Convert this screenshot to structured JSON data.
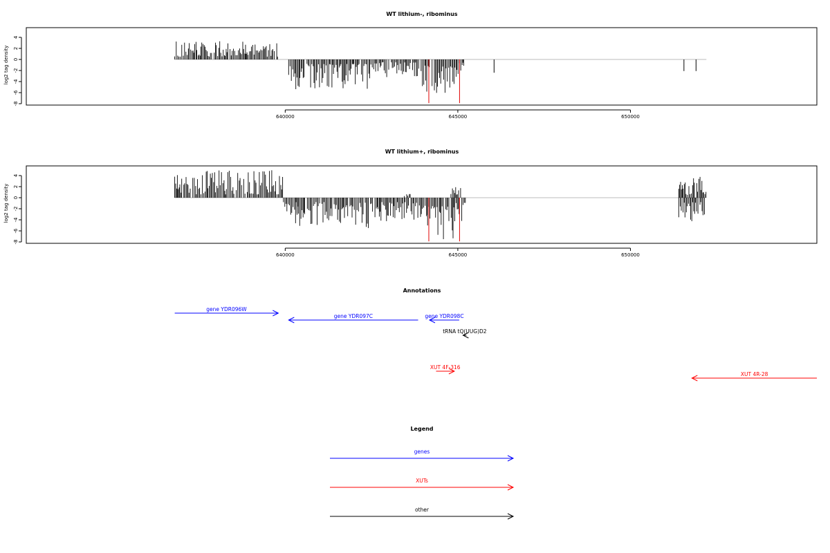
{
  "chart_data": [
    {
      "type": "bar",
      "title": "WT lithium-, ribominus",
      "xlabel": "",
      "ylabel": "log2 tag density",
      "xlim": [
        632500,
        655400
      ],
      "ylim": [
        -8,
        5.5
      ],
      "x_ticks": [
        640000,
        645000,
        650000
      ],
      "y_ticks": [
        4,
        2,
        0,
        -2,
        -4,
        -6,
        -8
      ],
      "x_tick_labels": [
        "640000",
        "645000",
        "650000"
      ],
      "y_tick_labels": [
        "4",
        "2",
        "0",
        "-2",
        "-4",
        "-6",
        "-8"
      ],
      "baseline": {
        "x_start": 636800,
        "x_end": 652200,
        "color": "#bbbbbb"
      },
      "series": [
        {
          "color": "#000000",
          "profile": {
            "positive_segments": [
              [
                636800,
                639800,
                0.5,
                3.3
              ]
            ],
            "negative_segments": [
              [
                640100,
                642600,
                -0.8,
                -5.6
              ],
              [
                642600,
                643800,
                -0.5,
                -3.2
              ],
              [
                643800,
                644100,
                -0.8,
                -5.0
              ],
              [
                644100,
                644950,
                -1.2,
                -6.1
              ],
              [
                644950,
                645200,
                -0.5,
                -3.6
              ]
            ],
            "isolated": [
              [
                646050,
                -2.4
              ],
              [
                651550,
                -2.1
              ],
              [
                651900,
                -2.1
              ]
            ]
          }
        }
      ],
      "highlights": [
        {
          "x": 644160,
          "y": -7.9,
          "color": "#e00000"
        },
        {
          "x": 645050,
          "y": -7.9,
          "color": "#e00000"
        }
      ]
    },
    {
      "type": "bar",
      "title": "WT lithium+, ribominus",
      "xlabel": "",
      "ylabel": "log2 tag density",
      "xlim": [
        632500,
        655400
      ],
      "ylim": [
        -8,
        5.5
      ],
      "x_ticks": [
        640000,
        645000,
        650000
      ],
      "y_ticks": [
        4,
        2,
        0,
        -2,
        -4,
        -6,
        -8
      ],
      "x_tick_labels": [
        "640000",
        "645000",
        "650000"
      ],
      "y_tick_labels": [
        "4",
        "2",
        "0",
        "-2",
        "-4",
        "-6",
        "-8"
      ],
      "baseline": {
        "x_start": 636800,
        "x_end": 652200,
        "color": "#bbbbbb"
      },
      "series": [
        {
          "color": "#000000",
          "profile": {
            "positive_segments": [
              [
                636800,
                639950,
                0.6,
                5.0
              ],
              [
                643450,
                643650,
                0.3,
                1.8
              ],
              [
                644800,
                645100,
                0.5,
                2.2
              ],
              [
                651400,
                652200,
                0.5,
                4.1
              ]
            ],
            "negative_segments": [
              [
                639950,
                640400,
                -0.8,
                -3.5
              ],
              [
                640300,
                640750,
                -2.0,
                -5.2
              ],
              [
                640750,
                642600,
                -0.8,
                -5.5
              ],
              [
                642600,
                643600,
                -0.8,
                -4.5
              ],
              [
                643600,
                644100,
                -0.8,
                -4.0
              ],
              [
                644100,
                644950,
                -1.5,
                -7.6
              ],
              [
                644950,
                645250,
                -0.8,
                -5.2
              ],
              [
                651400,
                652200,
                -0.8,
                -4.6
              ]
            ],
            "isolated": []
          }
        }
      ],
      "highlights": [
        {
          "x": 644160,
          "y": -7.9,
          "color": "#e00000"
        },
        {
          "x": 645050,
          "y": -7.9,
          "color": "#e00000"
        }
      ]
    }
  ],
  "annotations": {
    "title": "Annotations",
    "items": [
      {
        "label": "gene YDR096W",
        "x_start": 636800,
        "x_end": 639800,
        "direction": "right",
        "color": "#0000ff",
        "row": 0
      },
      {
        "label": "gene YDR097C",
        "x_start": 640100,
        "x_end": 643850,
        "direction": "left",
        "color": "#0000ff",
        "row": 1
      },
      {
        "label": "gene YDR098C",
        "x_start": 644180,
        "x_end": 645040,
        "direction": "left",
        "color": "#0000ff",
        "row": 1
      },
      {
        "label": "tRNA tQ(UUG)D2",
        "x_start": 645150,
        "x_end": 645250,
        "direction": "left",
        "color": "#000000",
        "row": 2
      },
      {
        "label": "XUT 4F-316",
        "x_start": 644370,
        "x_end": 644900,
        "direction": "right",
        "color": "#ff0000",
        "row": 3
      },
      {
        "label": "XUT 4R-28",
        "x_start": 651780,
        "x_end": 655400,
        "direction": "left",
        "color": "#ff0000",
        "row": 4
      }
    ]
  },
  "legend": {
    "title": "Legend",
    "items": [
      {
        "label": "genes",
        "color": "#0000ff"
      },
      {
        "label": "XUTs",
        "color": "#ff0000"
      },
      {
        "label": "other",
        "color": "#000000"
      }
    ]
  }
}
